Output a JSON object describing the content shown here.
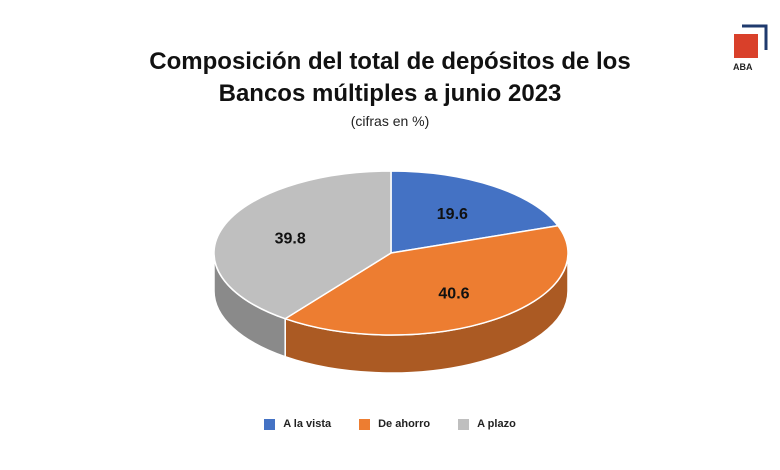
{
  "logo": {
    "text": "ABA",
    "color": "#d9402a",
    "frame_color": "#1f3a6e"
  },
  "chart_data": {
    "type": "pie",
    "title_line1": "Composición del total de depósitos de los",
    "title_line2": "Bancos múltiples a junio 2023",
    "subtitle": "(cifras en %)",
    "slices": [
      {
        "label": "A la vista",
        "value": 19.6,
        "color": "#4472c4"
      },
      {
        "label": "De ahorro",
        "value": 40.6,
        "color": "#ed7d31"
      },
      {
        "label": "A plazo",
        "value": 39.8,
        "color": "#bfbfbf"
      }
    ],
    "legend_position": "bottom"
  }
}
